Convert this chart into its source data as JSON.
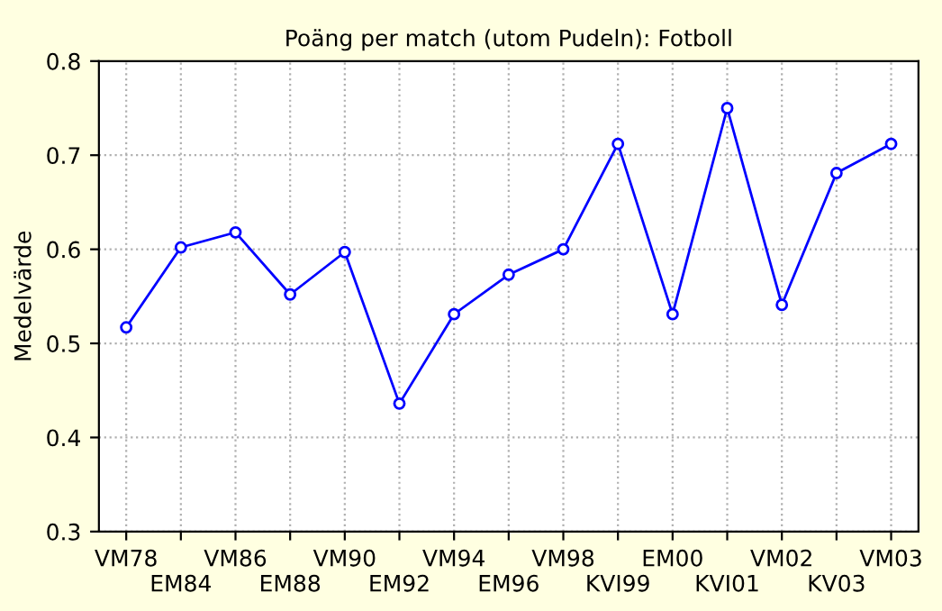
{
  "chart_data": {
    "type": "line",
    "title": "Poäng per match (utom Pudeln): Fotboll",
    "ylabel": "Medelvärde",
    "categories": [
      "VM78",
      "EM84",
      "VM86",
      "EM88",
      "VM90",
      "EM92",
      "VM94",
      "EM96",
      "VM98",
      "KVI99",
      "EM00",
      "KVI01",
      "VM02",
      "KV03",
      "VM03"
    ],
    "series": [
      {
        "color": "#0000ff",
        "values": [
          0.517,
          0.602,
          0.618,
          0.552,
          0.597,
          0.436,
          0.531,
          0.573,
          0.6,
          0.712,
          0.531,
          0.75,
          0.541,
          0.681,
          0.712
        ]
      }
    ],
    "ylim": [
      0.3,
      0.8
    ],
    "yticks": [
      0.3,
      0.4,
      0.5,
      0.6,
      0.7,
      0.8
    ],
    "grid": true,
    "marker": "circle",
    "line_style": "solid"
  }
}
